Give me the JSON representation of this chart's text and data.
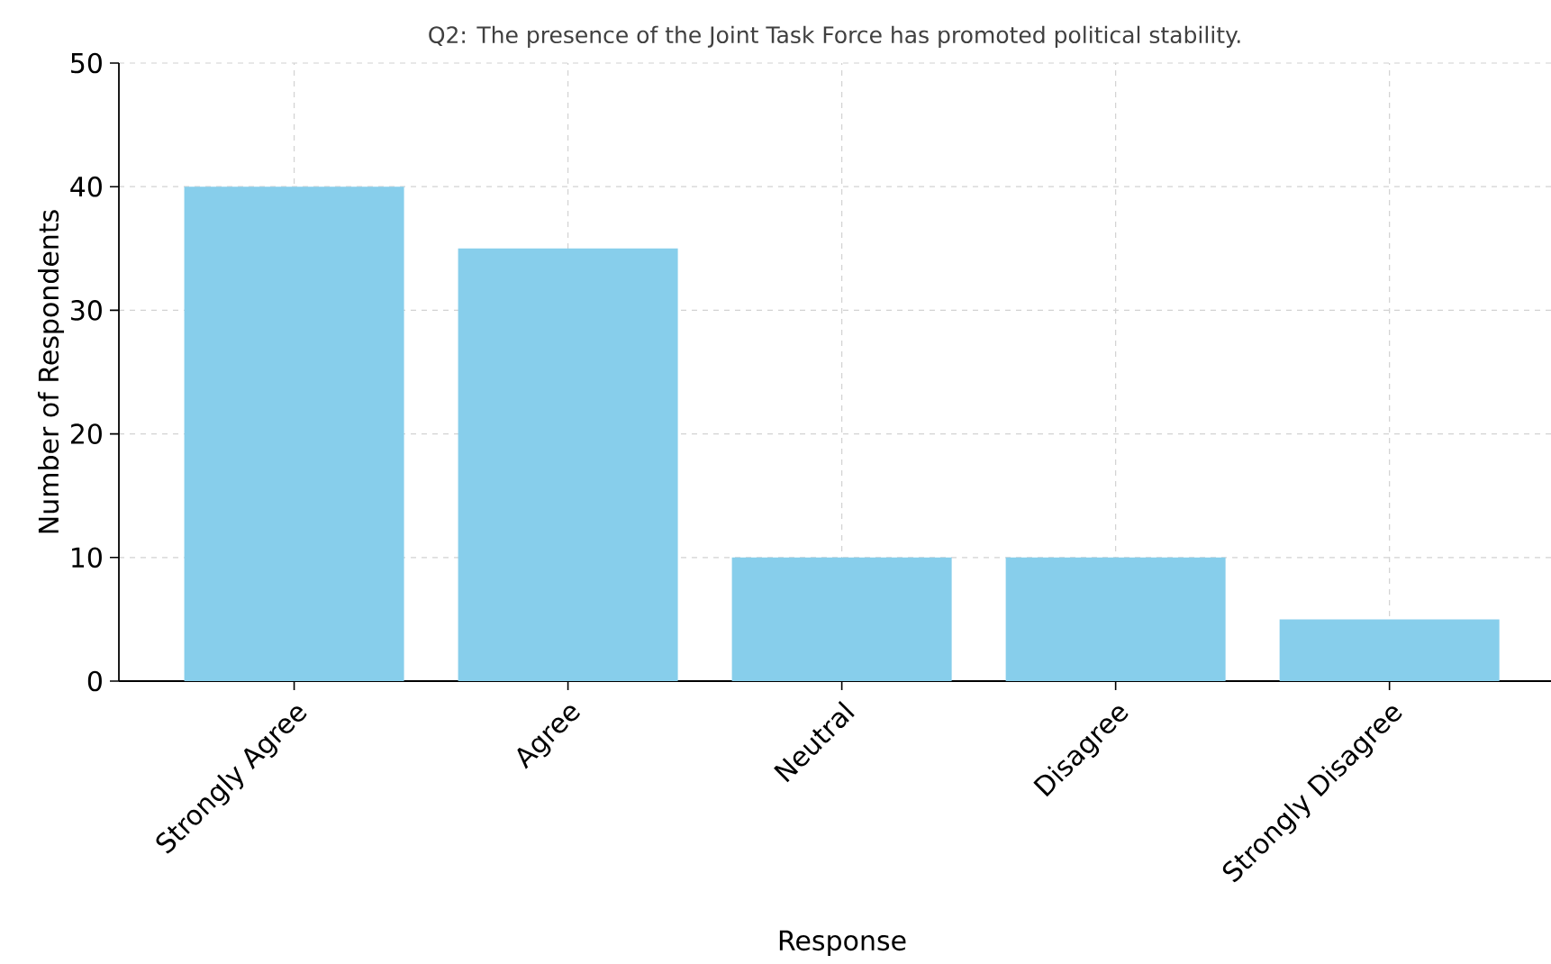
{
  "chart_data": {
    "type": "bar",
    "title": "Q2: The presence of the Joint Task Force has promoted political stability.",
    "xlabel": "Response",
    "ylabel": "Number of Respondents",
    "categories": [
      "Strongly Agree",
      "Agree",
      "Neutral",
      "Disagree",
      "Strongly Disagree"
    ],
    "values": [
      40,
      35,
      10,
      10,
      5
    ],
    "color": "#87ceeb",
    "ylim": [
      0,
      50
    ],
    "yticks": [
      0,
      10,
      20,
      30,
      40,
      50
    ],
    "grid": true
  }
}
